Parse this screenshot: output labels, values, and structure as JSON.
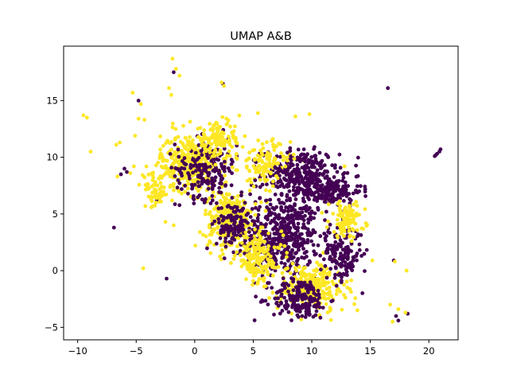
{
  "chart_data": {
    "type": "scatter",
    "title": "UMAP A&B",
    "xlabel": "",
    "ylabel": "",
    "xlim": [
      -11.2,
      22.5
    ],
    "ylim": [
      -6.1,
      19.8
    ],
    "x_ticks": [
      -10,
      -5,
      0,
      5,
      10,
      15,
      20
    ],
    "y_ticks": [
      -5,
      0,
      5,
      10,
      15
    ],
    "x_tick_labels": [
      "−10",
      "−5",
      "0",
      "5",
      "10",
      "15",
      "20"
    ],
    "y_tick_labels": [
      "−5",
      "0",
      "5",
      "10",
      "15"
    ],
    "grid": false,
    "legend": "none",
    "colors": {
      "purple": "#440154",
      "yellow": "#fde725",
      "axes": "#000000"
    },
    "series": [
      {
        "color": "#440154",
        "clusters": [
          {
            "cx": 7.5,
            "cy": 3.0,
            "sx": 2.8,
            "sy": 3.2,
            "weight": 0.3
          },
          {
            "cx": 9.0,
            "cy": 8.5,
            "sx": 3.0,
            "sy": 2.0,
            "weight": 0.18
          },
          {
            "cx": 11.5,
            "cy": 7.0,
            "sx": 2.5,
            "sy": 1.2,
            "weight": 0.1
          },
          {
            "cx": 9.0,
            "cy": -2.5,
            "sx": 2.2,
            "sy": 1.6,
            "weight": 0.12
          },
          {
            "cx": 1.0,
            "cy": 9.0,
            "sx": 2.4,
            "sy": 2.4,
            "weight": 0.12
          },
          {
            "cx": 12.5,
            "cy": 1.5,
            "sx": 1.6,
            "sy": 2.2,
            "weight": 0.1
          },
          {
            "cx": 3.5,
            "cy": 4.0,
            "sx": 1.5,
            "sy": 2.0,
            "weight": 0.08
          }
        ],
        "outliers": [
          [
            16.5,
            16.1
          ],
          [
            20.5,
            10.1
          ],
          [
            20.7,
            10.3
          ],
          [
            20.9,
            10.5
          ],
          [
            21.0,
            10.7
          ],
          [
            20.6,
            10.2
          ],
          [
            -6.9,
            3.8
          ],
          [
            -2.4,
            -0.7
          ],
          [
            17.0,
            0.9
          ],
          [
            18.2,
            -3.8
          ],
          [
            17.4,
            -4.4
          ],
          [
            17.2,
            -4.0
          ],
          [
            -4.8,
            15.0
          ],
          [
            -1.8,
            17.5
          ],
          [
            2.4,
            16.5
          ],
          [
            -6.3,
            8.5
          ],
          [
            -5.8,
            8.7
          ],
          [
            -6.0,
            9.0
          ]
        ]
      },
      {
        "color": "#fde725",
        "clusters": [
          {
            "cx": -0.5,
            "cy": 9.5,
            "sx": 2.2,
            "sy": 2.3,
            "weight": 0.22
          },
          {
            "cx": 3.0,
            "cy": 4.5,
            "sx": 2.0,
            "sy": 2.4,
            "weight": 0.16
          },
          {
            "cx": 10.0,
            "cy": -1.5,
            "sx": 2.6,
            "sy": 2.0,
            "weight": 0.18
          },
          {
            "cx": 6.0,
            "cy": 9.5,
            "sx": 2.0,
            "sy": 1.8,
            "weight": 0.08
          },
          {
            "cx": 13.0,
            "cy": 4.5,
            "sx": 1.4,
            "sy": 1.4,
            "weight": 0.07
          },
          {
            "cx": 5.5,
            "cy": 1.0,
            "sx": 1.8,
            "sy": 2.0,
            "weight": 0.1
          },
          {
            "cx": 2.0,
            "cy": 11.5,
            "sx": 1.8,
            "sy": 1.4,
            "weight": 0.08
          },
          {
            "cx": -3.5,
            "cy": 7.0,
            "sx": 1.0,
            "sy": 1.4,
            "weight": 0.04
          }
        ],
        "outliers": [
          [
            -9.5,
            13.7
          ],
          [
            -9.2,
            13.5
          ],
          [
            -8.9,
            10.5
          ],
          [
            -5.3,
            15.7
          ],
          [
            -4.6,
            14.7
          ],
          [
            -1.9,
            18.7
          ],
          [
            -1.6,
            17.8
          ],
          [
            -1.3,
            17.2
          ],
          [
            -2.2,
            16.1
          ],
          [
            -2.0,
            15.5
          ],
          [
            2.3,
            16.6
          ],
          [
            2.5,
            16.3
          ],
          [
            -6.7,
            11.1
          ],
          [
            -6.4,
            11.3
          ],
          [
            -5.1,
            11.9
          ],
          [
            -4.8,
            13.4
          ],
          [
            -4.3,
            13.3
          ],
          [
            -6.6,
            8.3
          ],
          [
            -5.5,
            8.6
          ],
          [
            -5.2,
            9.2
          ],
          [
            -4.4,
            0.2
          ],
          [
            -2.5,
            4.3
          ],
          [
            -1.8,
            4.0
          ],
          [
            9.8,
            13.8
          ],
          [
            8.6,
            13.6
          ],
          [
            17.1,
            0.8
          ],
          [
            18.1,
            0.0
          ],
          [
            17.4,
            -3.4
          ],
          [
            16.7,
            -3.0
          ],
          [
            18.0,
            -3.7
          ],
          [
            16.9,
            -4.5
          ],
          [
            13.9,
            -3.5
          ],
          [
            12.8,
            9.2
          ],
          [
            5.4,
            13.9
          ]
        ]
      }
    ]
  }
}
